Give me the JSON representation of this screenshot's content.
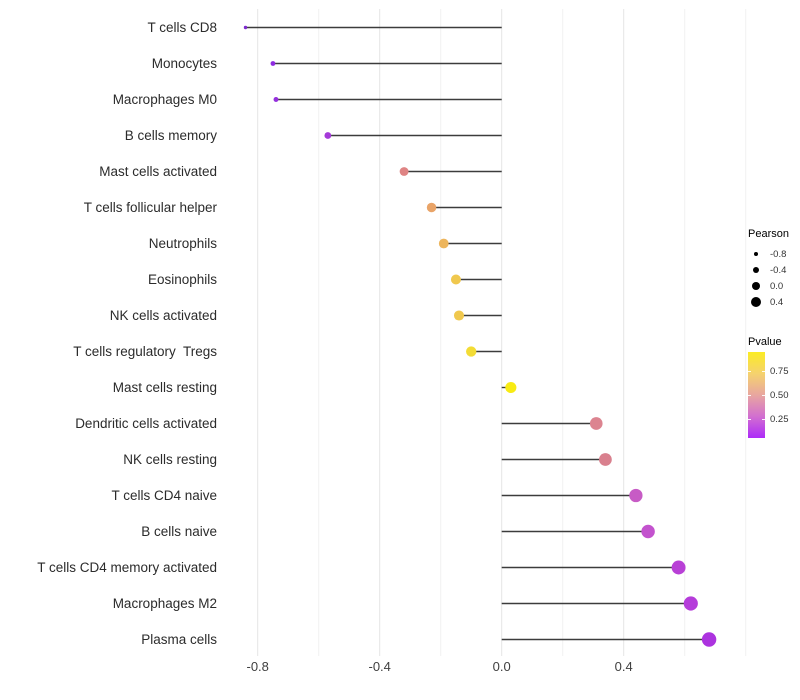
{
  "chart_data": {
    "type": "lollipop",
    "orientation": "horizontal",
    "title": "",
    "xlabel": "",
    "ylabel": "",
    "baseline": 0,
    "x_ticks": {
      "values": [
        -0.8,
        -0.4,
        0,
        0.4
      ],
      "labels": [
        "-0.8",
        "-0.4",
        "0.0",
        "0.4"
      ]
    },
    "x_minor_ticks": [
      -0.6,
      -0.2,
      0.2,
      0.6,
      0.8
    ],
    "x_range": [
      -0.93,
      0.815
    ],
    "size_encoding": "Pearson",
    "color_encoding": "Pvalue",
    "items": [
      {
        "label": "T cells CD8",
        "pearson": -0.84,
        "color": "#7D2BCD"
      },
      {
        "label": "Monocytes",
        "pearson": -0.75,
        "color": "#8E2BE0"
      },
      {
        "label": "Macrophages M0",
        "pearson": -0.74,
        "color": "#9530DD"
      },
      {
        "label": "B cells memory",
        "pearson": -0.57,
        "color": "#A53AD9"
      },
      {
        "label": "Mast cells activated",
        "pearson": -0.32,
        "color": "#DF8484"
      },
      {
        "label": "T cells follicular helper",
        "pearson": -0.23,
        "color": "#E9A468"
      },
      {
        "label": "Neutrophils",
        "pearson": -0.19,
        "color": "#EDB55C"
      },
      {
        "label": "Eosinophils",
        "pearson": -0.15,
        "color": "#F0C84E"
      },
      {
        "label": "NK cells activated",
        "pearson": -0.14,
        "color": "#F0C84E"
      },
      {
        "label": "T cells regulatory  Tregs",
        "pearson": -0.1,
        "color": "#F3DC35"
      },
      {
        "label": "Mast cells resting",
        "pearson": 0.03,
        "color": "#F8EB13"
      },
      {
        "label": "Dendritic cells activated",
        "pearson": 0.31,
        "color": "#DC8490"
      },
      {
        "label": "NK cells resting",
        "pearson": 0.34,
        "color": "#D9808E"
      },
      {
        "label": "T cells CD4 naive",
        "pearson": 0.44,
        "color": "#C75BC5"
      },
      {
        "label": "B cells naive",
        "pearson": 0.48,
        "color": "#C353CE"
      },
      {
        "label": "T cells CD4 memory activated",
        "pearson": 0.58,
        "color": "#B840D6"
      },
      {
        "label": "Macrophages M2",
        "pearson": 0.62,
        "color": "#B53CDA"
      },
      {
        "label": "Plasma cells",
        "pearson": 0.68,
        "color": "#AC33DF"
      }
    ]
  },
  "legends": {
    "pearson": {
      "title": "Pearson",
      "entries": [
        {
          "label": "-0.8",
          "r": 2.0
        },
        {
          "label": "-0.4",
          "r": 3.4
        },
        {
          "label": "0.0",
          "r": 4.3
        },
        {
          "label": "0.4",
          "r": 5.0
        }
      ]
    },
    "pvalue": {
      "title": "Pvalue",
      "tick_labels": [
        "0.75",
        "0.50",
        "0.25"
      ],
      "tick_offsets": [
        19.3,
        43.0,
        66.6
      ],
      "gradient_top_to_bottom": [
        "#FBEC24",
        "#F5D26E",
        "#E8A6A0",
        "#D26FD0",
        "#AD2BF8"
      ]
    }
  },
  "style": {
    "background": "#FFFFFF",
    "stem": "#3C3C3C",
    "grid_major": "#E4E4E4",
    "grid_minor": "#F1F1F1",
    "axis_text": "#404040",
    "label_text": "#2B2B2B",
    "legend_text": "#333333"
  }
}
